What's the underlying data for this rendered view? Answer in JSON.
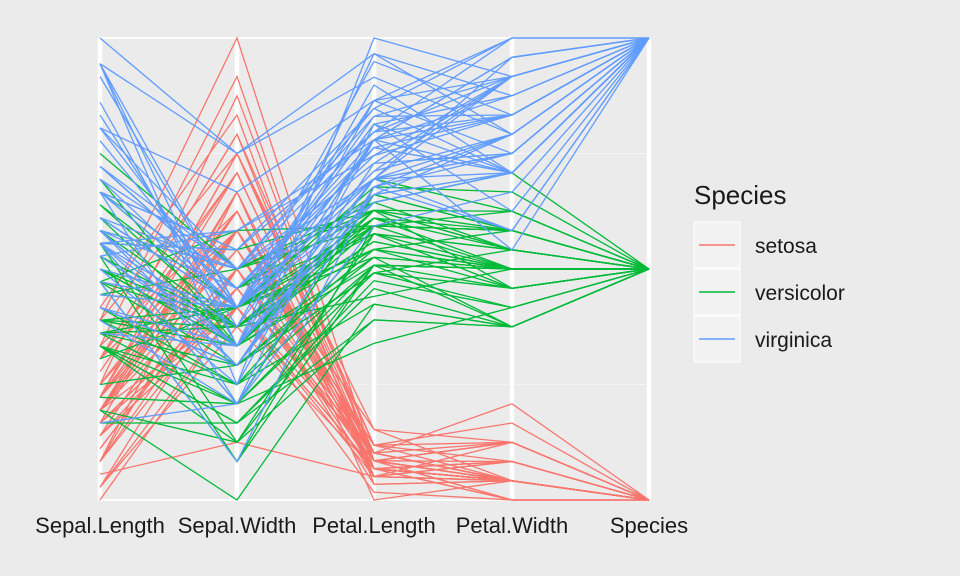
{
  "chart_data": {
    "type": "parallel-coordinates",
    "title": "",
    "axes": [
      "Sepal.Length",
      "Sepal.Width",
      "Petal.Length",
      "Petal.Width",
      "Species"
    ],
    "value_scale": "each axis scaled from 0 (minimum) to 1 (maximum)",
    "grid": true,
    "legend": {
      "title": "Species",
      "position": "right",
      "items": [
        {
          "name": "setosa",
          "color": "#F8766D"
        },
        {
          "name": "versicolor",
          "color": "#00BA38"
        },
        {
          "name": "virginica",
          "color": "#619CFF"
        }
      ]
    },
    "species": [
      "setosa",
      "versicolor",
      "virginica"
    ],
    "rows": [
      [
        5.1,
        3.5,
        1.4,
        0.2,
        0
      ],
      [
        4.9,
        3.0,
        1.4,
        0.2,
        0
      ],
      [
        4.7,
        3.2,
        1.3,
        0.2,
        0
      ],
      [
        4.6,
        3.1,
        1.5,
        0.2,
        0
      ],
      [
        5.0,
        3.6,
        1.4,
        0.2,
        0
      ],
      [
        5.4,
        3.9,
        1.7,
        0.4,
        0
      ],
      [
        4.6,
        3.4,
        1.4,
        0.3,
        0
      ],
      [
        5.0,
        3.4,
        1.5,
        0.2,
        0
      ],
      [
        4.4,
        2.9,
        1.4,
        0.2,
        0
      ],
      [
        4.9,
        3.1,
        1.5,
        0.1,
        0
      ],
      [
        5.4,
        3.7,
        1.5,
        0.2,
        0
      ],
      [
        4.8,
        3.4,
        1.6,
        0.2,
        0
      ],
      [
        4.8,
        3.0,
        1.4,
        0.1,
        0
      ],
      [
        4.3,
        3.0,
        1.1,
        0.1,
        0
      ],
      [
        5.8,
        4.0,
        1.2,
        0.2,
        0
      ],
      [
        5.7,
        4.4,
        1.5,
        0.4,
        0
      ],
      [
        5.4,
        3.9,
        1.3,
        0.4,
        0
      ],
      [
        5.1,
        3.5,
        1.4,
        0.3,
        0
      ],
      [
        5.7,
        3.8,
        1.7,
        0.3,
        0
      ],
      [
        5.1,
        3.8,
        1.5,
        0.3,
        0
      ],
      [
        5.4,
        3.4,
        1.7,
        0.2,
        0
      ],
      [
        5.1,
        3.7,
        1.5,
        0.4,
        0
      ],
      [
        4.6,
        3.6,
        1.0,
        0.2,
        0
      ],
      [
        5.1,
        3.3,
        1.7,
        0.5,
        0
      ],
      [
        4.8,
        3.4,
        1.9,
        0.2,
        0
      ],
      [
        5.0,
        3.0,
        1.6,
        0.2,
        0
      ],
      [
        5.0,
        3.4,
        1.6,
        0.4,
        0
      ],
      [
        5.2,
        3.5,
        1.5,
        0.2,
        0
      ],
      [
        5.2,
        3.4,
        1.4,
        0.2,
        0
      ],
      [
        4.7,
        3.2,
        1.6,
        0.2,
        0
      ],
      [
        4.8,
        3.1,
        1.6,
        0.2,
        0
      ],
      [
        5.4,
        3.4,
        1.5,
        0.4,
        0
      ],
      [
        5.2,
        4.1,
        1.5,
        0.1,
        0
      ],
      [
        5.5,
        4.2,
        1.4,
        0.2,
        0
      ],
      [
        4.9,
        3.1,
        1.5,
        0.2,
        0
      ],
      [
        5.0,
        3.2,
        1.2,
        0.2,
        0
      ],
      [
        5.5,
        3.5,
        1.3,
        0.2,
        0
      ],
      [
        4.9,
        3.6,
        1.4,
        0.1,
        0
      ],
      [
        4.4,
        3.0,
        1.3,
        0.2,
        0
      ],
      [
        5.1,
        3.4,
        1.5,
        0.2,
        0
      ],
      [
        5.0,
        3.5,
        1.3,
        0.3,
        0
      ],
      [
        4.5,
        2.3,
        1.3,
        0.3,
        0
      ],
      [
        4.4,
        3.2,
        1.3,
        0.2,
        0
      ],
      [
        5.0,
        3.5,
        1.6,
        0.6,
        0
      ],
      [
        5.1,
        3.8,
        1.9,
        0.4,
        0
      ],
      [
        4.8,
        3.0,
        1.4,
        0.3,
        0
      ],
      [
        5.1,
        3.8,
        1.6,
        0.2,
        0
      ],
      [
        4.6,
        3.2,
        1.4,
        0.2,
        0
      ],
      [
        5.3,
        3.7,
        1.5,
        0.2,
        0
      ],
      [
        5.0,
        3.3,
        1.4,
        0.2,
        0
      ],
      [
        7.0,
        3.2,
        4.7,
        1.4,
        1
      ],
      [
        6.4,
        3.2,
        4.5,
        1.5,
        1
      ],
      [
        6.9,
        3.1,
        4.9,
        1.5,
        1
      ],
      [
        5.5,
        2.3,
        4.0,
        1.3,
        1
      ],
      [
        6.5,
        2.8,
        4.6,
        1.5,
        1
      ],
      [
        5.7,
        2.8,
        4.5,
        1.3,
        1
      ],
      [
        6.3,
        3.3,
        4.7,
        1.6,
        1
      ],
      [
        4.9,
        2.4,
        3.3,
        1.0,
        1
      ],
      [
        6.6,
        2.9,
        4.6,
        1.3,
        1
      ],
      [
        5.2,
        2.7,
        3.9,
        1.4,
        1
      ],
      [
        5.0,
        2.0,
        3.5,
        1.0,
        1
      ],
      [
        5.9,
        3.0,
        4.2,
        1.5,
        1
      ],
      [
        6.0,
        2.2,
        4.0,
        1.0,
        1
      ],
      [
        6.1,
        2.9,
        4.7,
        1.4,
        1
      ],
      [
        5.6,
        2.9,
        3.6,
        1.3,
        1
      ],
      [
        6.7,
        3.1,
        4.4,
        1.4,
        1
      ],
      [
        5.6,
        3.0,
        4.5,
        1.5,
        1
      ],
      [
        5.8,
        2.7,
        4.1,
        1.0,
        1
      ],
      [
        6.2,
        2.2,
        4.5,
        1.5,
        1
      ],
      [
        5.6,
        2.5,
        3.9,
        1.1,
        1
      ],
      [
        5.9,
        3.2,
        4.8,
        1.8,
        1
      ],
      [
        6.1,
        2.8,
        4.0,
        1.3,
        1
      ],
      [
        6.3,
        2.5,
        4.9,
        1.5,
        1
      ],
      [
        6.1,
        2.8,
        4.7,
        1.2,
        1
      ],
      [
        6.4,
        2.9,
        4.3,
        1.3,
        1
      ],
      [
        6.6,
        3.0,
        4.4,
        1.4,
        1
      ],
      [
        6.8,
        2.8,
        4.8,
        1.4,
        1
      ],
      [
        6.7,
        3.0,
        5.0,
        1.7,
        1
      ],
      [
        6.0,
        2.9,
        4.5,
        1.5,
        1
      ],
      [
        5.7,
        2.6,
        3.5,
        1.0,
        1
      ],
      [
        5.5,
        2.4,
        3.8,
        1.1,
        1
      ],
      [
        5.5,
        2.4,
        3.7,
        1.0,
        1
      ],
      [
        5.8,
        2.7,
        3.9,
        1.2,
        1
      ],
      [
        6.0,
        2.7,
        5.1,
        1.6,
        1
      ],
      [
        5.4,
        3.0,
        4.5,
        1.5,
        1
      ],
      [
        6.0,
        3.4,
        4.5,
        1.6,
        1
      ],
      [
        6.7,
        3.1,
        4.7,
        1.5,
        1
      ],
      [
        6.3,
        2.3,
        4.4,
        1.3,
        1
      ],
      [
        5.6,
        3.0,
        4.1,
        1.3,
        1
      ],
      [
        5.5,
        2.5,
        4.0,
        1.3,
        1
      ],
      [
        5.5,
        2.6,
        4.4,
        1.2,
        1
      ],
      [
        6.1,
        3.0,
        4.6,
        1.4,
        1
      ],
      [
        5.8,
        2.6,
        4.0,
        1.2,
        1
      ],
      [
        5.0,
        2.3,
        3.3,
        1.0,
        1
      ],
      [
        5.6,
        2.7,
        4.2,
        1.3,
        1
      ],
      [
        5.7,
        3.0,
        4.2,
        1.2,
        1
      ],
      [
        5.7,
        2.9,
        4.2,
        1.3,
        1
      ],
      [
        6.2,
        2.9,
        4.3,
        1.3,
        1
      ],
      [
        5.1,
        2.5,
        3.0,
        1.1,
        1
      ],
      [
        5.7,
        2.8,
        4.1,
        1.3,
        1
      ],
      [
        6.3,
        3.3,
        6.0,
        2.5,
        2
      ],
      [
        5.8,
        2.7,
        5.1,
        1.9,
        2
      ],
      [
        7.1,
        3.0,
        5.9,
        2.1,
        2
      ],
      [
        6.3,
        2.9,
        5.6,
        1.8,
        2
      ],
      [
        6.5,
        3.0,
        5.8,
        2.2,
        2
      ],
      [
        7.6,
        3.0,
        6.6,
        2.1,
        2
      ],
      [
        4.9,
        2.5,
        4.5,
        1.7,
        2
      ],
      [
        7.3,
        2.9,
        6.3,
        1.8,
        2
      ],
      [
        6.7,
        2.5,
        5.8,
        1.8,
        2
      ],
      [
        7.2,
        3.6,
        6.1,
        2.5,
        2
      ],
      [
        6.5,
        3.2,
        5.1,
        2.0,
        2
      ],
      [
        6.4,
        2.7,
        5.3,
        1.9,
        2
      ],
      [
        6.8,
        3.0,
        5.5,
        2.1,
        2
      ],
      [
        5.7,
        2.5,
        5.0,
        2.0,
        2
      ],
      [
        5.8,
        2.8,
        5.1,
        2.4,
        2
      ],
      [
        6.4,
        3.2,
        5.3,
        2.3,
        2
      ],
      [
        6.5,
        3.0,
        5.5,
        1.8,
        2
      ],
      [
        7.7,
        3.8,
        6.7,
        2.2,
        2
      ],
      [
        7.7,
        2.6,
        6.9,
        2.3,
        2
      ],
      [
        6.0,
        2.2,
        5.0,
        1.5,
        2
      ],
      [
        6.9,
        3.2,
        5.7,
        2.3,
        2
      ],
      [
        5.6,
        2.8,
        4.9,
        2.0,
        2
      ],
      [
        7.7,
        2.8,
        6.7,
        2.0,
        2
      ],
      [
        6.3,
        2.7,
        4.9,
        1.8,
        2
      ],
      [
        6.7,
        3.3,
        5.7,
        2.1,
        2
      ],
      [
        7.2,
        3.2,
        6.0,
        1.8,
        2
      ],
      [
        6.2,
        2.8,
        4.8,
        1.8,
        2
      ],
      [
        6.1,
        3.0,
        4.9,
        1.8,
        2
      ],
      [
        6.4,
        2.8,
        5.6,
        2.1,
        2
      ],
      [
        7.2,
        3.0,
        5.8,
        1.6,
        2
      ],
      [
        7.4,
        2.8,
        6.1,
        1.9,
        2
      ],
      [
        7.9,
        3.8,
        6.4,
        2.0,
        2
      ],
      [
        6.4,
        2.8,
        5.6,
        2.2,
        2
      ],
      [
        6.3,
        2.8,
        5.1,
        1.5,
        2
      ],
      [
        6.1,
        2.6,
        5.6,
        1.4,
        2
      ],
      [
        7.7,
        3.0,
        6.1,
        2.3,
        2
      ],
      [
        6.3,
        3.4,
        5.6,
        2.4,
        2
      ],
      [
        6.4,
        3.1,
        5.5,
        1.8,
        2
      ],
      [
        6.0,
        3.0,
        4.8,
        1.8,
        2
      ],
      [
        6.9,
        3.1,
        5.4,
        2.1,
        2
      ],
      [
        6.7,
        3.1,
        5.6,
        2.4,
        2
      ],
      [
        6.9,
        3.1,
        5.1,
        2.3,
        2
      ],
      [
        5.8,
        2.7,
        5.1,
        1.9,
        2
      ],
      [
        6.8,
        3.2,
        5.9,
        2.3,
        2
      ],
      [
        6.7,
        3.3,
        5.7,
        2.5,
        2
      ],
      [
        6.7,
        3.0,
        5.2,
        2.3,
        2
      ],
      [
        6.3,
        2.5,
        5.0,
        1.9,
        2
      ],
      [
        6.5,
        3.0,
        5.2,
        2.0,
        2
      ],
      [
        6.2,
        3.4,
        5.4,
        2.3,
        2
      ],
      [
        5.9,
        3.0,
        5.1,
        1.8,
        2
      ]
    ]
  }
}
